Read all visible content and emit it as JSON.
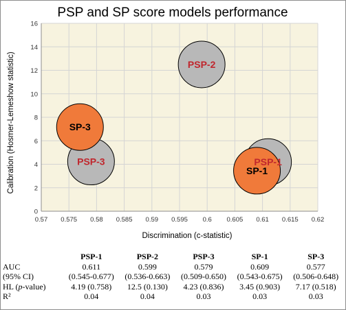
{
  "chart_data": {
    "type": "scatter",
    "title": "PSP and SP score models performance",
    "xlabel": "Discrimination (c-statistic)",
    "ylabel": "Calibration (Hosmer-Lemeshow statistic)",
    "xlim": [
      0.57,
      0.62
    ],
    "ylim": [
      0,
      16
    ],
    "x_ticks": [
      "0.57",
      "0.575",
      "0.58",
      "0.585",
      "0.59",
      "0.595",
      "0.6",
      "0.605",
      "0.61",
      "0.615",
      "0.62"
    ],
    "y_ticks": [
      "0",
      "2",
      "4",
      "6",
      "8",
      "10",
      "12",
      "14",
      "16"
    ],
    "grid": true,
    "points": [
      {
        "label": "PSP-1",
        "x": 0.611,
        "y": 4.19,
        "color": "#b8b8b8",
        "label_color": "#c0262d"
      },
      {
        "label": "PSP-2",
        "x": 0.599,
        "y": 12.5,
        "color": "#b8b8b8",
        "label_color": "#c0262d"
      },
      {
        "label": "PSP-3",
        "x": 0.579,
        "y": 4.23,
        "color": "#b8b8b8",
        "label_color": "#c0262d"
      },
      {
        "label": "SP-1",
        "x": 0.609,
        "y": 3.45,
        "color": "#f07a3a",
        "label_color": "#000000"
      },
      {
        "label": "SP-3",
        "x": 0.577,
        "y": 7.17,
        "color": "#f07a3a",
        "label_color": "#000000"
      }
    ]
  },
  "table": {
    "columns": [
      "",
      "PSP-1",
      "PSP-2",
      "PSP-3",
      "SP-1",
      "SP-3"
    ],
    "rows": [
      {
        "label": "AUC",
        "values": [
          "0.611",
          "0.599",
          "0.579",
          "0.609",
          "0.577"
        ]
      },
      {
        "label": "(95% CI)",
        "values": [
          "(0.545-0.677)",
          "(0.536-0.663)",
          "(0.509-0.650)",
          "(0.543-0.675)",
          "(0.506-0.648)"
        ]
      },
      {
        "label_prefix": "HL (",
        "label_italic": "p",
        "label_suffix": "-value)",
        "values": [
          "4.19 (0.758)",
          "12.5 (0.130)",
          "4.23 (0.836)",
          "3.45 (0.903)",
          "7.17 (0.518)"
        ]
      },
      {
        "label": "R²",
        "values": [
          "0.04",
          "0.04",
          "0.03",
          "0.03",
          "0.03"
        ]
      }
    ]
  }
}
